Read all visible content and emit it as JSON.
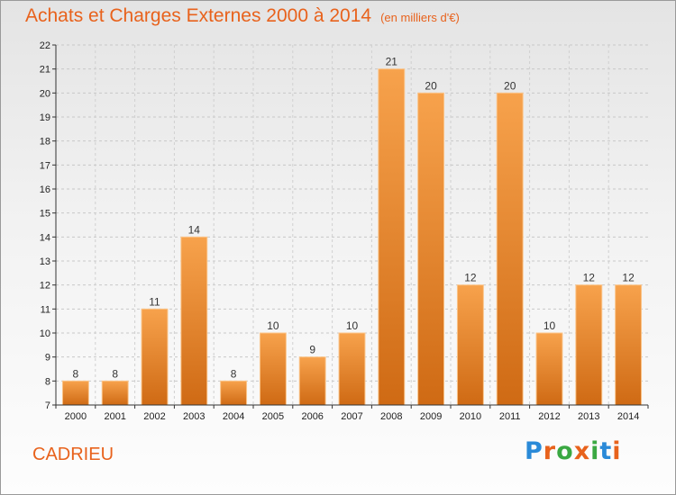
{
  "title": "Achats et Charges Externes 2000 à 2014",
  "unit": "(en milliers d'€)",
  "commune": "CADRIEU",
  "logo": {
    "letters": [
      "P",
      "r",
      "o",
      "x",
      "i",
      "t",
      "i"
    ],
    "colors": [
      "#2a8ad8",
      "#e8621c",
      "#3aa842",
      "#e8621c",
      "#3aa842",
      "#2a8ad8",
      "#e8621c"
    ]
  },
  "chart_data": {
    "type": "bar",
    "categories": [
      "2000",
      "2001",
      "2002",
      "2003",
      "2004",
      "2005",
      "2006",
      "2007",
      "2008",
      "2009",
      "2010",
      "2011",
      "2012",
      "2013",
      "2014"
    ],
    "values": [
      8,
      8,
      11,
      14,
      8,
      10,
      9,
      10,
      21,
      20,
      12,
      20,
      10,
      12,
      12
    ],
    "ylim": [
      7,
      22
    ],
    "yticks": [
      7,
      8,
      9,
      10,
      11,
      12,
      13,
      14,
      15,
      16,
      17,
      18,
      19,
      20,
      21,
      22
    ],
    "grid": true,
    "bar_color": "#e98a2e",
    "title": "Achats et Charges Externes 2000 à 2014",
    "xlabel": "",
    "ylabel": ""
  }
}
